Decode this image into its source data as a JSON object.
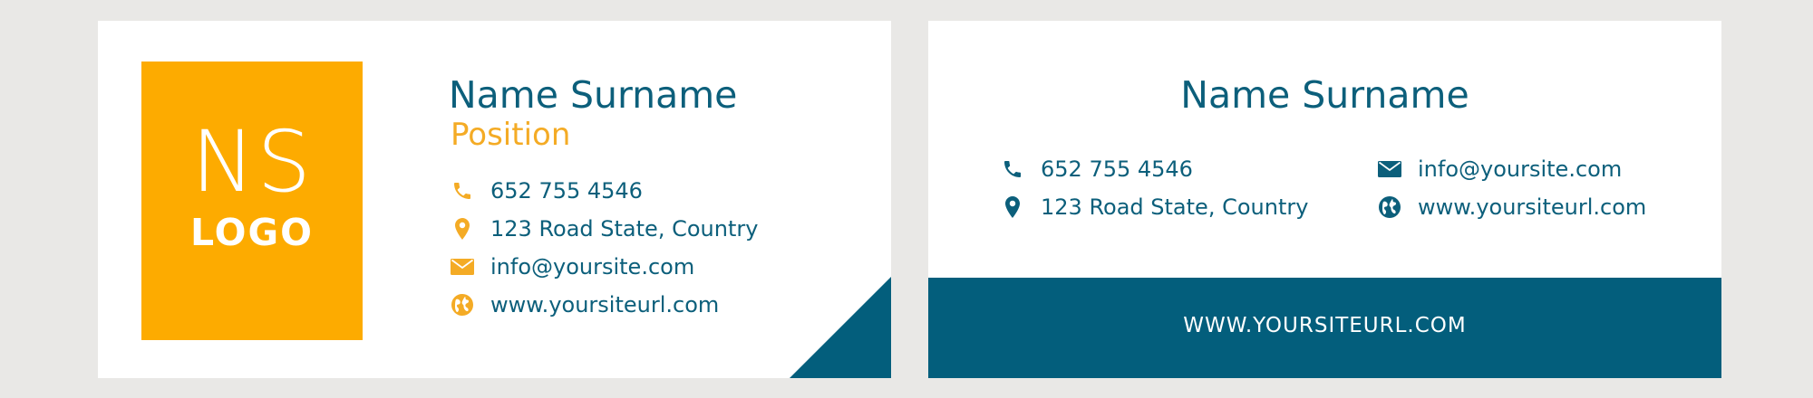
{
  "front": {
    "logo": {
      "initials": "NS",
      "word": "LOGO"
    },
    "name": "Name Surname",
    "position": "Position",
    "contacts": {
      "phone": "652 755 4546",
      "address": "123 Road State, Country",
      "email": "info@yoursite.com",
      "website": "www.yoursiteurl.com"
    }
  },
  "back": {
    "name": "Name Surname",
    "contacts": {
      "phone": "652 755 4546",
      "address": "123 Road State, Country",
      "email": "info@yoursite.com",
      "website": "www.yoursiteurl.com"
    },
    "band_url": "WWW.YOURSITEURL.COM"
  },
  "colors": {
    "background": "#e9e8e6",
    "card": "#ffffff",
    "brand_teal": "#0c5f7b",
    "band_teal": "#035e7c",
    "accent_orange": "#fdab00"
  },
  "icons": {
    "phone": "phone-icon",
    "address": "location-pin-icon",
    "email": "envelope-icon",
    "website": "globe-icon"
  }
}
